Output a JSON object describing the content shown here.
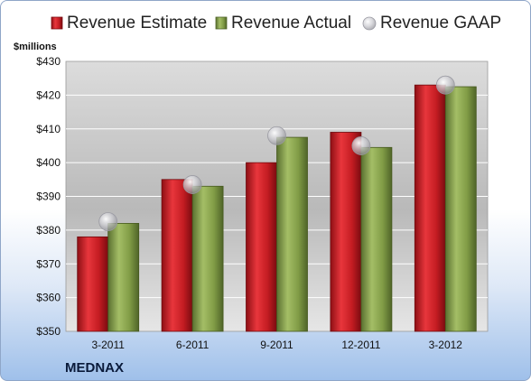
{
  "chart_data": {
    "type": "bar",
    "ylabel": "$millions",
    "ylim": [
      350,
      430
    ],
    "yticks": [
      350,
      360,
      370,
      380,
      390,
      400,
      410,
      420,
      430
    ],
    "ytick_labels": [
      "$350",
      "$360",
      "$370",
      "$380",
      "$390",
      "$400",
      "$410",
      "$420",
      "$430"
    ],
    "categories": [
      "3-2011",
      "6-2011",
      "9-2011",
      "12-2011",
      "3-2012"
    ],
    "series": [
      {
        "name": "Revenue Estimate",
        "type": "bar",
        "color": "#cc2027",
        "values": [
          378,
          395,
          400,
          409,
          423
        ]
      },
      {
        "name": "Revenue Actual",
        "type": "bar",
        "color": "#7f9a45",
        "values": [
          382,
          393,
          407.5,
          404.5,
          422.5
        ]
      },
      {
        "name": "Revenue GAAP",
        "type": "marker",
        "color": "#c8c8cc",
        "values": [
          382.5,
          393.5,
          408,
          405,
          423
        ]
      }
    ],
    "legend_position": "top",
    "grid": true,
    "company": "MEDNAX"
  }
}
